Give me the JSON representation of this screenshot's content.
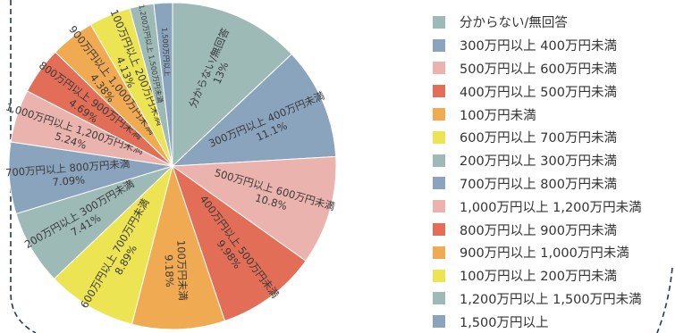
{
  "chart_data": {
    "type": "pie",
    "slices": [
      {
        "label": "分からない/無回答",
        "value": 13,
        "value_label": "13%",
        "color": "#9dbab6"
      },
      {
        "label": "300万円以上 400万円未満",
        "value": 11.1,
        "value_label": "11.1%",
        "color": "#8aa4be"
      },
      {
        "label": "500万円以上 600万円未満",
        "value": 10.8,
        "value_label": "10.8%",
        "color": "#ebb3ad"
      },
      {
        "label": "400万円以上 500万円未満",
        "value": 9.98,
        "value_label": "9.98%",
        "color": "#e26e57"
      },
      {
        "label": "100万円未満",
        "value": 9.18,
        "value_label": "9.18%",
        "color": "#f0aa52"
      },
      {
        "label": "600万円以上 700万円未満",
        "value": 8.89,
        "value_label": "8.89%",
        "color": "#ede453"
      },
      {
        "label": "200万円以上 300万円未満",
        "value": 7.41,
        "value_label": "7.41%",
        "color": "#9dbab6"
      },
      {
        "label": "700万円以上 800万円未満",
        "value": 7.09,
        "value_label": "7.09%",
        "color": "#8aa4be"
      },
      {
        "label": "1,000万円以上 1,200万円未満",
        "value": 5.24,
        "value_label": "5.24%",
        "color": "#ebb3ad"
      },
      {
        "label": "800万円以上 900万円未満",
        "value": 4.69,
        "value_label": "4.69%",
        "color": "#e26e57"
      },
      {
        "label": "900万円以上 1,000万円未満",
        "value": 4.38,
        "value_label": "4.38%",
        "color": "#f0aa52"
      },
      {
        "label": "100万円以上 200万円未満",
        "value": 4.13,
        "value_label": "4.13%",
        "color": "#ede453"
      },
      {
        "label": "1,200万円以上 1,500万円未満",
        "value": 2.38,
        "value_label": "",
        "color": "#9dbab6"
      },
      {
        "label": "1,500万円以上",
        "value": 1.84,
        "value_label": "",
        "color": "#8aa4be"
      }
    ],
    "legend_position": "right",
    "start_angle": "top",
    "direction": "clockwise"
  }
}
